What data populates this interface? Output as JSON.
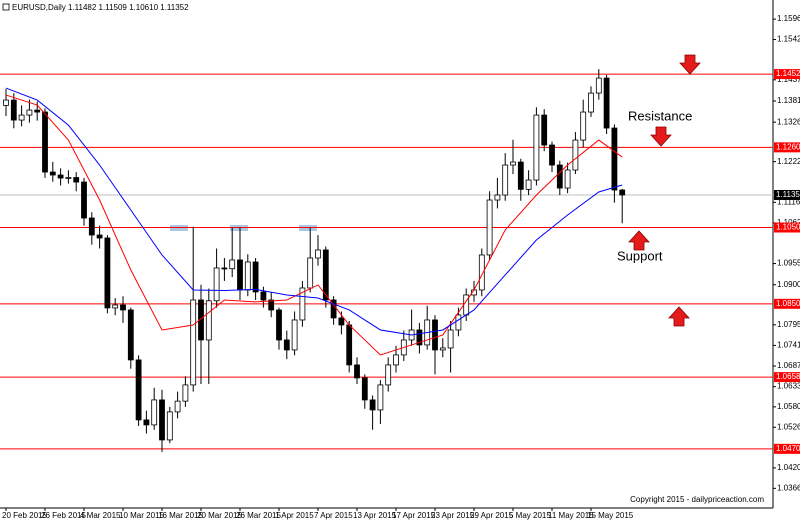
{
  "chart_data": {
    "type": "candlestick",
    "title": "EURUSD,Daily  1.11482 1.11509 1.10610 1.11352",
    "categories": [
      "20 Feb 2015",
      null,
      null,
      null,
      null,
      "26 Feb 2015",
      null,
      null,
      null,
      null,
      "4 Mar 2015",
      null,
      null,
      null,
      null,
      "10 Mar 2015",
      null,
      null,
      null,
      null,
      "16 Mar 2015",
      null,
      null,
      null,
      null,
      "20 Mar 2015",
      null,
      null,
      null,
      null,
      "26 Mar 2015",
      null,
      null,
      null,
      null,
      "1 Apr 2015",
      null,
      null,
      null,
      null,
      "7 Apr 2015",
      null,
      null,
      null,
      null,
      "13 Apr 2015",
      null,
      null,
      null,
      null,
      "17 Apr 2015",
      null,
      null,
      null,
      null,
      "23 Apr 2015",
      null,
      null,
      null,
      null,
      "29 Apr 2015",
      null,
      null,
      null,
      null,
      "5 May 2015",
      null,
      null,
      null,
      null,
      "11 May 2015",
      null,
      null,
      null,
      null,
      "15 May 2015",
      null,
      null,
      null,
      null
    ],
    "open": [
      1.137,
      1.13839,
      1.13315,
      1.13446,
      1.13577,
      1.13525,
      1.11953,
      1.11875,
      1.11796,
      1.1181,
      1.11691,
      1.10749,
      1.10303,
      1.10225,
      1.08392,
      1.0847,
      1.08339,
      1.0703,
      1.05458,
      1.05327,
      1.05982,
      1.04934,
      1.05668,
      1.0595,
      1.06375,
      1.08601,
      1.07553,
      1.0858,
      1.09439,
      1.0942,
      1.09649,
      1.08863,
      1.09596,
      1.08811,
      1.08601,
      1.08339,
      1.07553,
      1.07292,
      1.08077,
      1.08915,
      1.09701,
      1.09911,
      1.08601,
      1.0813,
      1.07946,
      1.06899,
      1.06558,
      1.05982,
      1.0572,
      1.06375,
      1.06899,
      1.07161,
      1.07553,
      1.07815,
      1.07423,
      1.08077,
      1.07292,
      1.07344,
      1.07815,
      1.08208,
      1.08732,
      1.08863,
      1.0978,
      1.1122,
      1.11351,
      1.12137,
      1.12215,
      1.115,
      1.11744,
      1.13446,
      1.12661,
      1.12137,
      1.11534,
      1.12006,
      1.12791,
      1.13525,
      1.14022,
      1.14415,
      1.13106,
      1.11482
    ],
    "high": [
      1.1413,
      1.1402,
      1.137,
      1.1385,
      1.138,
      1.1362,
      1.1222,
      1.1205,
      1.12,
      1.1195,
      1.118,
      1.109,
      1.1055,
      1.103,
      1.0865,
      1.087,
      1.084,
      1.0715,
      1.057,
      1.063,
      1.0625,
      1.058,
      1.062,
      1.066,
      1.1052,
      1.09,
      1.089,
      1.0995,
      1.097,
      1.105,
      1.1051,
      1.098,
      1.097,
      1.0895,
      1.088,
      1.084,
      1.078,
      1.083,
      1.091,
      1.105,
      1.103,
      1.1,
      1.087,
      1.083,
      1.0805,
      1.071,
      1.0665,
      1.061,
      1.065,
      1.071,
      1.074,
      1.078,
      1.0835,
      1.08,
      1.0845,
      1.082,
      1.076,
      1.0805,
      1.084,
      1.089,
      1.091,
      1.0995,
      1.1145,
      1.118,
      1.1245,
      1.128,
      1.123,
      1.12,
      1.1365,
      1.136,
      1.1275,
      1.1225,
      1.122,
      1.13,
      1.1385,
      1.142,
      1.1465,
      1.145,
      1.132,
      1.11509
    ],
    "low": [
      1.1342,
      1.131,
      1.1315,
      1.1325,
      1.133,
      1.118,
      1.117,
      1.116,
      1.1165,
      1.1145,
      1.1055,
      1.1005,
      1.0995,
      1.0825,
      1.082,
      1.08,
      1.068,
      1.053,
      1.051,
      1.052,
      1.0462,
      1.0485,
      1.055,
      1.058,
      1.062,
      1.064,
      1.064,
      1.084,
      1.091,
      1.092,
      1.086,
      1.087,
      1.086,
      1.084,
      1.0815,
      1.073,
      1.0705,
      1.0715,
      1.079,
      1.088,
      1.095,
      1.084,
      1.0795,
      1.077,
      1.067,
      1.064,
      1.0575,
      1.052,
      1.0535,
      1.062,
      1.067,
      1.07,
      1.074,
      1.072,
      1.073,
      1.0665,
      1.071,
      1.067,
      1.0765,
      1.0805,
      1.0855,
      1.087,
      1.0965,
      1.11,
      1.112,
      1.119,
      1.112,
      1.1135,
      1.116,
      1.125,
      1.1195,
      1.1135,
      1.114,
      1.119,
      1.126,
      1.134,
      1.1385,
      1.1295,
      1.1115,
      1.1061
    ],
    "close": [
      1.13839,
      1.13315,
      1.13446,
      1.13577,
      1.13525,
      1.11953,
      1.11875,
      1.11796,
      1.1181,
      1.11691,
      1.10749,
      1.10303,
      1.10225,
      1.08392,
      1.0847,
      1.08339,
      1.0703,
      1.05458,
      1.05327,
      1.05982,
      1.04934,
      1.05668,
      1.0595,
      1.06375,
      1.08601,
      1.07553,
      1.0858,
      1.09439,
      1.0942,
      1.09649,
      1.08863,
      1.09596,
      1.08811,
      1.08601,
      1.08339,
      1.07553,
      1.07292,
      1.08077,
      1.08915,
      1.09701,
      1.09911,
      1.08601,
      1.0813,
      1.07946,
      1.06899,
      1.06558,
      1.05982,
      1.0572,
      1.06375,
      1.06899,
      1.07161,
      1.07553,
      1.07815,
      1.07423,
      1.08077,
      1.07292,
      1.07344,
      1.07815,
      1.08208,
      1.08732,
      1.08863,
      1.0978,
      1.1122,
      1.11351,
      1.12137,
      1.12215,
      1.115,
      1.11744,
      1.13446,
      1.12661,
      1.12137,
      1.11534,
      1.12006,
      1.12791,
      1.13525,
      1.14022,
      1.14415,
      1.13106,
      1.11482,
      1.11352
    ],
    "moving_averages": [
      {
        "color": "#ff0000",
        "x": [
          0,
          4,
          8,
          12,
          16,
          20,
          24,
          28,
          32,
          36,
          40,
          44,
          48,
          52,
          56,
          60,
          64,
          68,
          72,
          76,
          79
        ],
        "values": [
          1.1397,
          1.13708,
          1.12791,
          1.1122,
          1.09387,
          1.07815,
          1.07946,
          1.08601,
          1.0855,
          1.08601,
          1.08994,
          1.07946,
          1.07161,
          1.07423,
          1.07684,
          1.08863,
          1.10434,
          1.11351,
          1.12137,
          1.12791,
          1.12346
        ]
      },
      {
        "color": "#0000ff",
        "x": [
          0,
          4,
          8,
          12,
          16,
          20,
          24,
          28,
          32,
          36,
          40,
          44,
          48,
          52,
          56,
          60,
          64,
          68,
          72,
          76,
          79
        ],
        "values": [
          1.14153,
          1.13839,
          1.13184,
          1.12137,
          1.10958,
          1.0978,
          1.08863,
          1.0885,
          1.0888,
          1.08732,
          1.08653,
          1.08339,
          1.07815,
          1.07684,
          1.07815,
          1.08339,
          1.09256,
          1.10172,
          1.10827,
          1.1143,
          1.11613
        ]
      }
    ],
    "levels": [
      {
        "value": 1.1452,
        "label": "1.14520"
      },
      {
        "value": 1.126,
        "label": "1.12600"
      },
      {
        "value": 1.105,
        "label": "1.10500"
      },
      {
        "value": 1.085,
        "label": "1.08500"
      },
      {
        "value": 1.0658,
        "label": "1.06580"
      },
      {
        "value": 1.047,
        "label": "1.04700"
      }
    ],
    "level_color": "#ff0000",
    "last_price": 1.11352,
    "ylim": [
      1.0315,
      1.1633
    ],
    "yticks": [
      {
        "value": 1.1596,
        "label": "1.15960"
      },
      1.15425,
      {
        "value": 1.1437,
        "label": "1.14370"
      },
      1.13815,
      {
        "value": 1.1326,
        "label": "1.13260"
      },
      1.12225,
      {
        "value": 1.1116,
        "label": "1.11160"
      },
      {
        "value": 1.1062,
        "label": "1.10620"
      },
      1.09555,
      {
        "value": 1.09,
        "label": "1.09000"
      },
      {
        "value": 1.0795,
        "label": "1.07950"
      },
      {
        "value": 1.0741,
        "label": "1.07410"
      },
      {
        "value": 1.0687,
        "label": "1.06870"
      },
      {
        "value": 1.0633,
        "label": "1.06330"
      },
      {
        "value": 1.058,
        "label": "1.05800"
      },
      1.05265,
      {
        "value": 1.042,
        "label": "1.04200"
      },
      1.03665
    ],
    "annotations": [
      "Resistance",
      "Support"
    ],
    "copyright": "Copyright 2015 - dailypriceaction.com"
  }
}
